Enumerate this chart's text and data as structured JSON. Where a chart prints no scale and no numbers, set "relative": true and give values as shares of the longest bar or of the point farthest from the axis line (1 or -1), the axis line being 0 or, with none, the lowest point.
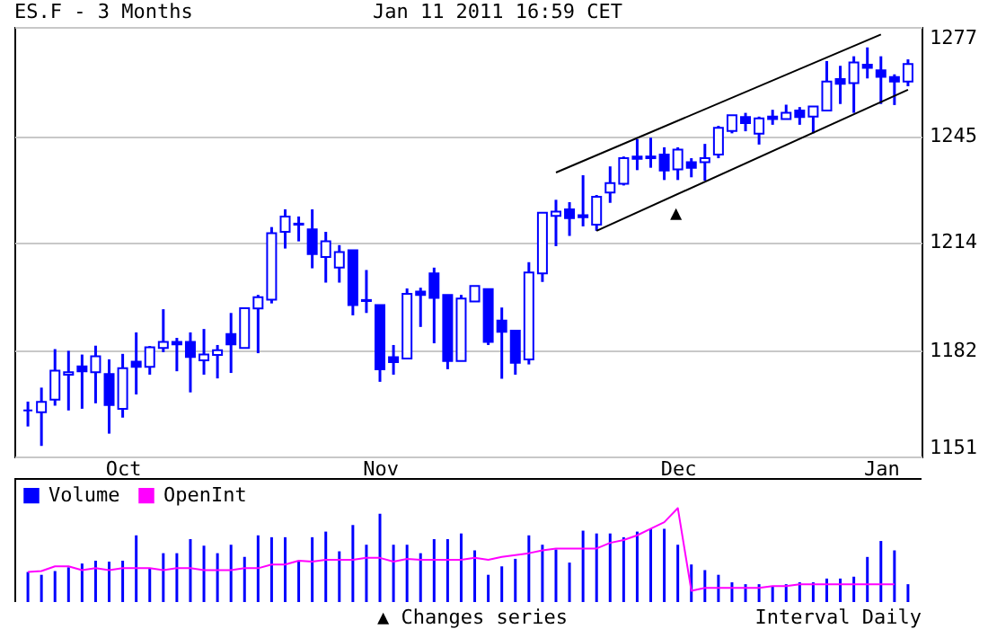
{
  "chart_data": [
    {
      "type": "candlestick",
      "title": "ES.F - 3 Months",
      "subtitle": "Jan 11 2011 16:59 CET",
      "categories": [
        null,
        null,
        null,
        null,
        null,
        null,
        null,
        "Oct",
        null,
        null,
        null,
        null,
        null,
        null,
        null,
        null,
        null,
        null,
        null,
        null,
        null,
        null,
        null,
        null,
        null,
        null,
        "Nov",
        null,
        null,
        null,
        null,
        null,
        null,
        null,
        null,
        null,
        null,
        null,
        null,
        null,
        null,
        null,
        null,
        null,
        null,
        null,
        null,
        null,
        "Dec",
        null,
        null,
        null,
        null,
        null,
        null,
        null,
        null,
        null,
        null,
        null,
        null,
        null,
        null,
        "Jan",
        null,
        null
      ],
      "series": [
        {
          "type": "candlestick",
          "color": "#0000ff",
          "ohlc": [
            [
              1164.5,
              1167.1,
              1159.8,
              1164.5
            ],
            [
              1164.0,
              1171.2,
              1154.1,
              1167.0
            ],
            [
              1167.7,
              1182.5,
              1165.9,
              1176.2
            ],
            [
              1175.0,
              1182.0,
              1164.5,
              1175.7
            ],
            [
              1177.4,
              1180.9,
              1165.0,
              1176.0
            ],
            [
              1175.7,
              1183.5,
              1166.6,
              1180.4
            ],
            [
              1175.2,
              1179.5,
              1157.7,
              1166.1
            ],
            [
              1165.0,
              1181.1,
              1162.4,
              1176.9
            ],
            [
              1178.8,
              1187.4,
              1169.2,
              1177.3
            ],
            [
              1177.3,
              1183.4,
              1175.0,
              1183.0
            ],
            [
              1182.8,
              1194.2,
              1181.6,
              1184.6
            ],
            [
              1184.6,
              1185.8,
              1176.0,
              1183.9
            ],
            [
              1184.6,
              1187.4,
              1169.8,
              1180.2
            ],
            [
              1179.2,
              1188.4,
              1175.0,
              1180.9
            ],
            [
              1180.8,
              1183.7,
              1173.9,
              1182.2
            ],
            [
              1186.9,
              1193.1,
              1175.5,
              1183.9
            ],
            [
              1182.8,
              1194.5,
              1182.8,
              1194.5
            ],
            [
              1194.4,
              1198.4,
              1181.3,
              1197.7
            ],
            [
              1197.0,
              1218.3,
              1195.9,
              1216.5
            ],
            [
              1216.9,
              1223.5,
              1212.0,
              1221.4
            ],
            [
              1219.0,
              1221.4,
              1214.1,
              1219.3
            ],
            [
              1217.6,
              1223.5,
              1206.2,
              1210.4
            ],
            [
              1209.5,
              1216.9,
              1202.0,
              1214.1
            ],
            [
              1206.4,
              1213.0,
              1202.0,
              1211.0
            ],
            [
              1211.5,
              1211.5,
              1192.4,
              1195.4
            ],
            [
              1196.6,
              1205.7,
              1193.1,
              1196.9
            ],
            [
              1195.4,
              1195.4,
              1172.9,
              1176.6
            ],
            [
              1180.1,
              1183.7,
              1175.0,
              1178.7
            ],
            [
              1179.7,
              1200.3,
              1179.7,
              1198.7
            ],
            [
              1199.4,
              1200.5,
              1189.0,
              1198.4
            ],
            [
              1204.7,
              1206.4,
              1184.2,
              1197.5
            ],
            [
              1198.4,
              1198.4,
              1176.6,
              1179.0
            ],
            [
              1179.0,
              1198.4,
              1179.0,
              1197.3
            ],
            [
              1196.5,
              1201.0,
              1196.5,
              1201.0
            ],
            [
              1200.1,
              1200.1,
              1183.7,
              1184.6
            ],
            [
              1190.9,
              1194.7,
              1173.8,
              1187.6
            ],
            [
              1187.9,
              1187.9,
              1175.0,
              1178.5
            ],
            [
              1179.5,
              1208.0,
              1178.0,
              1205.0
            ],
            [
              1204.7,
              1222.5,
              1202.2,
              1222.5
            ],
            [
              1221.6,
              1226.3,
              1212.7,
              1222.8
            ],
            [
              1223.5,
              1225.6,
              1215.7,
              1220.9
            ],
            [
              1221.8,
              1233.5,
              1218.5,
              1221.2
            ],
            [
              1219.0,
              1227.7,
              1217.2,
              1227.2
            ],
            [
              1228.4,
              1236.1,
              1225.4,
              1231.2
            ],
            [
              1231.0,
              1239.0,
              1230.5,
              1238.5
            ],
            [
              1239.0,
              1244.1,
              1235.0,
              1238.3
            ],
            [
              1239.0,
              1244.5,
              1235.7,
              1238.5
            ],
            [
              1239.6,
              1241.7,
              1232.1,
              1234.9
            ],
            [
              1235.2,
              1241.7,
              1232.1,
              1241.0
            ],
            [
              1237.3,
              1238.5,
              1232.9,
              1235.7
            ],
            [
              1237.3,
              1242.7,
              1231.9,
              1238.5
            ],
            [
              1239.6,
              1248.0,
              1238.5,
              1247.4
            ],
            [
              1246.5,
              1251.1,
              1245.8,
              1251.1
            ],
            [
              1250.6,
              1251.8,
              1246.4,
              1248.8
            ],
            [
              1245.7,
              1250.7,
              1242.5,
              1250.2
            ],
            [
              1250.7,
              1252.7,
              1248.3,
              1250.0
            ],
            [
              1250.0,
              1254.2,
              1250.0,
              1251.8
            ],
            [
              1252.5,
              1253.5,
              1248.3,
              1250.6
            ],
            [
              1250.7,
              1253.7,
              1245.8,
              1253.7
            ],
            [
              1252.5,
              1267.0,
              1252.5,
              1261.0
            ],
            [
              1261.7,
              1265.6,
              1254.4,
              1260.3
            ],
            [
              1260.5,
              1268.4,
              1251.8,
              1266.6
            ],
            [
              1265.9,
              1271.0,
              1261.9,
              1265.0
            ],
            [
              1264.3,
              1268.4,
              1254.4,
              1262.4
            ],
            [
              1262.3,
              1263.1,
              1254.1,
              1261.0
            ],
            [
              1261.0,
              1267.5,
              1259.6,
              1266.1
            ]
          ]
        },
        {
          "type": "line",
          "color": "#000000",
          "values": [
            null,
            null,
            null,
            null,
            null,
            null,
            null,
            null,
            null,
            null,
            null,
            null,
            null,
            null,
            null,
            null,
            null,
            null,
            null,
            null,
            null,
            null,
            null,
            null,
            null,
            null,
            null,
            null,
            null,
            null,
            null,
            null,
            null,
            null,
            null,
            null,
            null,
            null,
            null,
            null,
            null,
            null,
            1217.2,
            null,
            null,
            null,
            null,
            null,
            null,
            null,
            null,
            null,
            null,
            null,
            null,
            null,
            null,
            null,
            null,
            null,
            null,
            null,
            null,
            null,
            null,
            1258.6
          ]
        },
        {
          "type": "line",
          "color": "#000000",
          "values": [
            null,
            null,
            null,
            null,
            null,
            null,
            null,
            null,
            null,
            null,
            null,
            null,
            null,
            null,
            null,
            null,
            null,
            null,
            null,
            null,
            null,
            null,
            null,
            null,
            null,
            null,
            null,
            null,
            null,
            null,
            null,
            null,
            null,
            null,
            null,
            null,
            null,
            null,
            null,
            1234.3,
            null,
            null,
            null,
            null,
            null,
            null,
            null,
            null,
            null,
            null,
            null,
            null,
            null,
            null,
            null,
            null,
            null,
            null,
            null,
            null,
            null,
            null,
            null,
            1274.8,
            null,
            null
          ]
        }
      ],
      "ylim": [
        1151,
        1277
      ],
      "yticks": [
        1151,
        1182,
        1214,
        1245,
        1277
      ],
      "grid": "y",
      "annotations": [
        "▲"
      ]
    },
    {
      "type": "bar",
      "relative": true,
      "categories": [
        null,
        null,
        null,
        null,
        null,
        null,
        null,
        null,
        null,
        null,
        null,
        null,
        null,
        null,
        null,
        null,
        null,
        null,
        null,
        null,
        null,
        null,
        null,
        null,
        null,
        null,
        null,
        null,
        null,
        null,
        null,
        null,
        null,
        null,
        null,
        null,
        null,
        null,
        null,
        null,
        null,
        null,
        null,
        null,
        null,
        null,
        null,
        null,
        null,
        null,
        null,
        null,
        null,
        null,
        null,
        null,
        null,
        null,
        null,
        null,
        null,
        null,
        null,
        null,
        null,
        null
      ],
      "series": [
        {
          "name": "Volume",
          "color": "#0000ff",
          "values": [
            0.32,
            0.29,
            0.33,
            0.37,
            0.41,
            0.44,
            0.43,
            0.44,
            0.71,
            0.36,
            0.52,
            0.52,
            0.67,
            0.6,
            0.52,
            0.61,
            0.48,
            0.71,
            0.69,
            0.69,
            0.44,
            0.69,
            0.75,
            0.54,
            0.82,
            0.61,
            0.94,
            0.61,
            0.61,
            0.52,
            0.67,
            0.67,
            0.73,
            0.55,
            0.29,
            0.38,
            0.46,
            0.71,
            0.61,
            0.56,
            0.42,
            0.76,
            0.73,
            0.73,
            0.69,
            0.75,
            0.78,
            0.78,
            0.61,
            0.4,
            0.34,
            0.29,
            0.21,
            0.19,
            0.19,
            0.17,
            0.19,
            0.21,
            0.21,
            0.25,
            0.25,
            0.27,
            0.48,
            0.65,
            0.55,
            0.19
          ]
        },
        {
          "name": "OpenInt",
          "type": "line",
          "color": "#ff00ff",
          "values": [
            0.32,
            0.33,
            0.38,
            0.38,
            0.34,
            0.36,
            0.34,
            0.36,
            0.36,
            0.36,
            0.34,
            0.36,
            0.36,
            0.34,
            0.34,
            0.34,
            0.36,
            0.36,
            0.4,
            0.4,
            0.44,
            0.43,
            0.45,
            0.45,
            0.45,
            0.47,
            0.47,
            0.43,
            0.46,
            0.45,
            0.45,
            0.45,
            0.45,
            0.47,
            0.45,
            0.48,
            0.5,
            0.52,
            0.55,
            0.57,
            0.57,
            0.57,
            0.57,
            0.63,
            0.66,
            0.71,
            0.78,
            0.85,
            1,
            0.12,
            0.15,
            0.15,
            0.15,
            0.15,
            0.15,
            0.17,
            0.17,
            0.19,
            0.19,
            0.19,
            0.19,
            0.19,
            0.19,
            0.19,
            0.19,
            null
          ]
        }
      ],
      "legend": "top left",
      "annotations": [
        "▲ Changes series",
        "Interval Daily"
      ]
    }
  ]
}
